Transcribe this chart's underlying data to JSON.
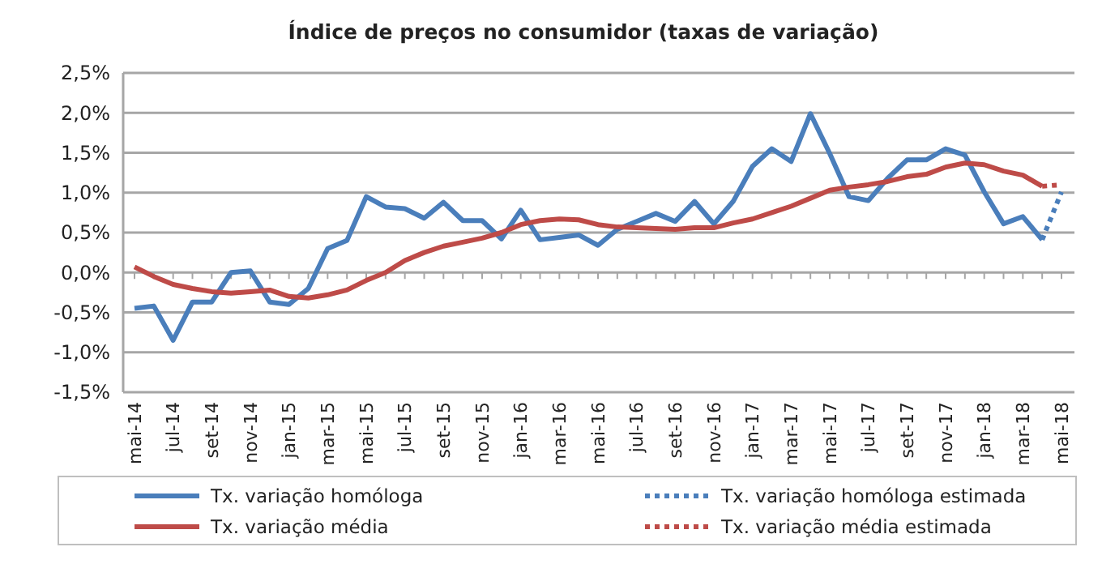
{
  "chart_data": {
    "type": "line",
    "title": "Índice de preços no consumidor  (taxas de variação)",
    "categories": [
      "mai-14",
      null,
      "jul-14",
      null,
      "set-14",
      null,
      "nov-14",
      null,
      "jan-15",
      null,
      "mar-15",
      null,
      "mai-15",
      null,
      "jul-15",
      null,
      "set-15",
      null,
      "nov-15",
      null,
      "jan-16",
      null,
      "mar-16",
      null,
      "mai-16",
      null,
      "jul-16",
      null,
      "set-16",
      null,
      "nov-16",
      null,
      "jan-17",
      null,
      "mar-17",
      null,
      "mai-17",
      null,
      "jul-17",
      null,
      "set-17",
      null,
      "nov-17",
      null,
      "jan-18",
      null,
      "mar-18",
      null,
      "mai-18"
    ],
    "series": [
      {
        "name": "Tx. variação homóloga",
        "color": "#4a7ebb",
        "line_style": "solid",
        "values": [
          -0.45,
          -0.42,
          -0.85,
          -0.37,
          -0.37,
          0.0,
          0.02,
          -0.37,
          -0.4,
          -0.2,
          0.3,
          0.4,
          0.95,
          0.82,
          0.8,
          0.68,
          0.88,
          0.65,
          0.65,
          0.42,
          0.78,
          0.41,
          0.44,
          0.47,
          0.34,
          0.54,
          0.64,
          0.74,
          0.64,
          0.89,
          0.61,
          0.89,
          1.33,
          1.55,
          1.39,
          1.99,
          1.49,
          0.95,
          0.9,
          1.18,
          1.41,
          1.41,
          1.55,
          1.47,
          1.01,
          0.61,
          0.7,
          0.41,
          null
        ]
      },
      {
        "name": "Tx. variação homóloga estimada",
        "color": "#4a7ebb",
        "line_style": "dotted",
        "values": [
          null,
          null,
          null,
          null,
          null,
          null,
          null,
          null,
          null,
          null,
          null,
          null,
          null,
          null,
          null,
          null,
          null,
          null,
          null,
          null,
          null,
          null,
          null,
          null,
          null,
          null,
          null,
          null,
          null,
          null,
          null,
          null,
          null,
          null,
          null,
          null,
          null,
          null,
          null,
          null,
          null,
          null,
          null,
          null,
          null,
          null,
          null,
          0.41,
          1.01
        ]
      },
      {
        "name": "Tx. variação média",
        "color": "#be4b48",
        "line_style": "solid",
        "values": [
          0.07,
          -0.05,
          -0.15,
          -0.2,
          -0.24,
          -0.26,
          -0.24,
          -0.22,
          -0.3,
          -0.32,
          -0.28,
          -0.22,
          -0.1,
          0.0,
          0.15,
          0.25,
          0.33,
          0.38,
          0.43,
          0.5,
          0.6,
          0.65,
          0.67,
          0.66,
          0.6,
          0.57,
          0.56,
          0.55,
          0.54,
          0.56,
          0.56,
          0.62,
          0.67,
          0.75,
          0.83,
          0.93,
          1.03,
          1.07,
          1.1,
          1.14,
          1.2,
          1.23,
          1.32,
          1.37,
          1.35,
          1.27,
          1.22,
          1.08,
          null
        ]
      },
      {
        "name": "Tx. variação média estimada",
        "color": "#be4b48",
        "line_style": "dotted",
        "values": [
          null,
          null,
          null,
          null,
          null,
          null,
          null,
          null,
          null,
          null,
          null,
          null,
          null,
          null,
          null,
          null,
          null,
          null,
          null,
          null,
          null,
          null,
          null,
          null,
          null,
          null,
          null,
          null,
          null,
          null,
          null,
          null,
          null,
          null,
          null,
          null,
          null,
          null,
          null,
          null,
          null,
          null,
          null,
          null,
          null,
          null,
          null,
          1.08,
          1.1
        ]
      }
    ],
    "ylim": [
      -1.5,
      2.5
    ],
    "yticks": [
      {
        "value": -1.5,
        "label": "-1,5%"
      },
      {
        "value": -1.0,
        "label": "-1,0%"
      },
      {
        "value": -0.5,
        "label": "-0,5%"
      },
      {
        "value": 0,
        "label": "0,0%"
      },
      {
        "value": 0.5,
        "label": "0,5%"
      },
      {
        "value": 1.0,
        "label": "1,0%"
      },
      {
        "value": 1.5,
        "label": "1,5%"
      },
      {
        "value": 2.0,
        "label": "2,0%"
      },
      {
        "value": 2.5,
        "label": "2,5%"
      }
    ],
    "grid": "y",
    "legend": "bottom"
  }
}
